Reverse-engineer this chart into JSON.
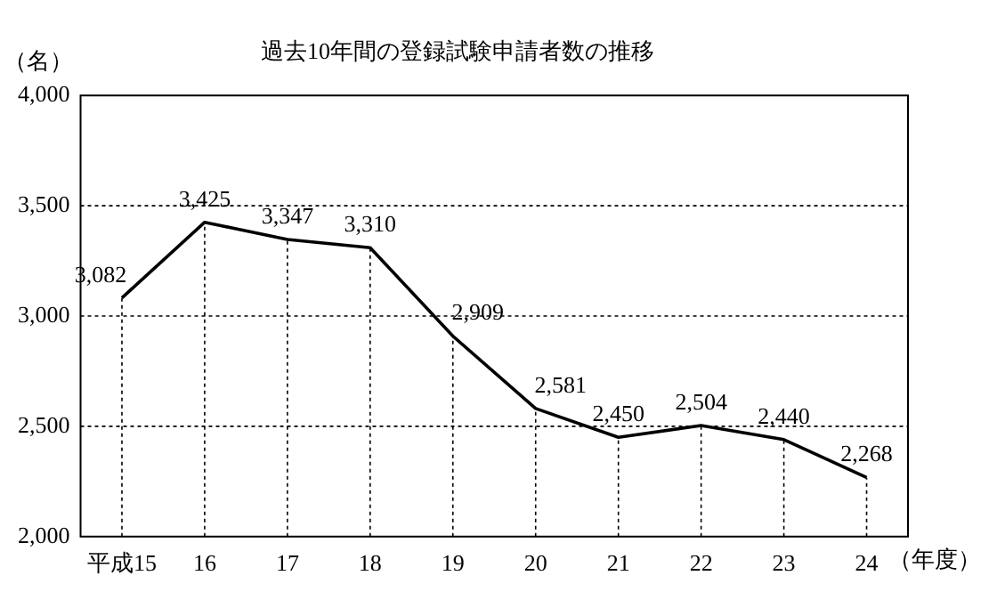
{
  "chart_data": {
    "type": "line",
    "title": "過去10年間の登録試験申請者数の推移",
    "ylabel": "（名）",
    "xlabel": "（年度）",
    "categories": [
      "平成15",
      "16",
      "17",
      "18",
      "19",
      "20",
      "21",
      "22",
      "23",
      "24"
    ],
    "series": [
      {
        "color": "#000000",
        "values": [
          3082,
          3425,
          3347,
          3310,
          2909,
          2581,
          2450,
          2504,
          2440,
          2268
        ],
        "value_labels": [
          "3,082",
          "3,425",
          "3,347",
          "3,310",
          "2,909",
          "2,581",
          "2,450",
          "2,504",
          "2,440",
          "2,268"
        ]
      }
    ],
    "ylim": [
      2000,
      4000
    ],
    "yticks": [
      {
        "value": 2000,
        "label": "2,000"
      },
      {
        "value": 2500,
        "label": "2,500"
      },
      {
        "value": 3000,
        "label": "3,000"
      },
      {
        "value": 3500,
        "label": "3,500"
      },
      {
        "value": 4000,
        "label": "4,000"
      }
    ],
    "grid": true,
    "legend": false,
    "marker": "none",
    "line_style": "solid"
  }
}
